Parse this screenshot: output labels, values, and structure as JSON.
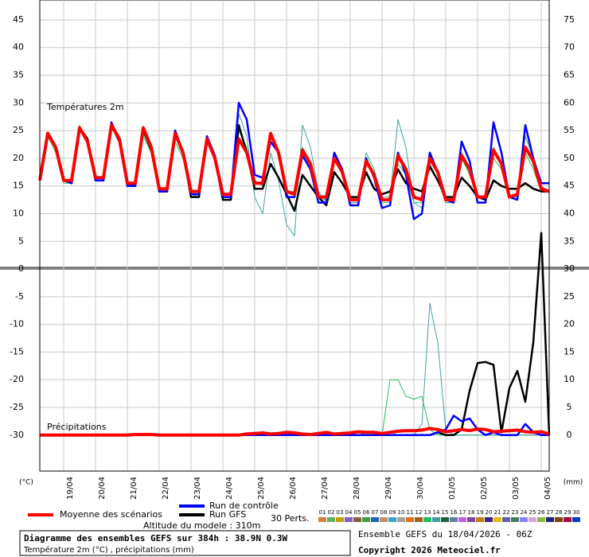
{
  "chart_data": {
    "type": "line",
    "title": "Diagramme des ensembles GEFS sur 384h : 38.9N 0.3W",
    "subtitle": "Température 2m (°C) , précipitations (mm)",
    "run_info": "Ensemble GEFS du 18/04/2026 - 06Z",
    "copyright": "Copyright 2026 Meteociel.fr",
    "altitude": "Altitude du modele : 310m",
    "temperature_label": "Températures 2m",
    "precipitation_label": "Précipitations",
    "y_unit": "(°C)",
    "y2_unit": "(mm)",
    "grid": true,
    "x": [
      0,
      6,
      12,
      18,
      24,
      30,
      36,
      42,
      48,
      54,
      60,
      66,
      72,
      78,
      84,
      90,
      96,
      102,
      108,
      114,
      120,
      126,
      132,
      138,
      144,
      150,
      156,
      162,
      168,
      174,
      180,
      186,
      192,
      198,
      204,
      210,
      216,
      222,
      228,
      234,
      240,
      246,
      252,
      258,
      264,
      270,
      276,
      282,
      288,
      294,
      300,
      306,
      312,
      318,
      324,
      330,
      336,
      342,
      348,
      354,
      360,
      366,
      372,
      378,
      384
    ],
    "xlim": [
      0,
      384
    ],
    "xticks": [
      {
        "value": 18,
        "label": "19/04"
      },
      {
        "value": 42,
        "label": "20/04"
      },
      {
        "value": 66,
        "label": "21/04"
      },
      {
        "value": 90,
        "label": "22/04"
      },
      {
        "value": 114,
        "label": "23/04"
      },
      {
        "value": 138,
        "label": "24/04"
      },
      {
        "value": 162,
        "label": "25/04"
      },
      {
        "value": 186,
        "label": "26/04"
      },
      {
        "value": 210,
        "label": "27/04"
      },
      {
        "value": 234,
        "label": "28/04"
      },
      {
        "value": 258,
        "label": "29/04"
      },
      {
        "value": 282,
        "label": "30/04"
      },
      {
        "value": 306,
        "label": "01/05"
      },
      {
        "value": 330,
        "label": "02/05"
      },
      {
        "value": 354,
        "label": "03/05"
      },
      {
        "value": 378,
        "label": "04/05"
      }
    ],
    "ylim": [
      -36.5,
      48.3
    ],
    "yticks": [
      45,
      40,
      35,
      30,
      25,
      20,
      15,
      10,
      5,
      0,
      -5,
      -10,
      -15,
      -20,
      -25,
      -30
    ],
    "y2lim": [
      -6.5,
      78.3
    ],
    "y2ticks": [
      75,
      70,
      65,
      60,
      55,
      50,
      45,
      40,
      35,
      30,
      25,
      20,
      15,
      10,
      5,
      0
    ],
    "series": [
      {
        "name": "Moyenne des scénarios",
        "color": "#ff0000",
        "width": 4,
        "values": [
          16,
          24.5,
          22,
          16,
          16,
          25.5,
          23,
          16.5,
          16.5,
          26,
          23.5,
          15.5,
          15.5,
          25.5,
          22,
          14.5,
          14.5,
          24.5,
          21,
          14,
          14,
          23.5,
          20,
          13.5,
          13.5,
          23.5,
          21,
          15.5,
          15.5,
          24.5,
          21,
          14,
          13.5,
          21.5,
          19,
          13,
          13,
          20,
          17.5,
          12.5,
          12.5,
          19.5,
          17,
          12.5,
          12.5,
          20.5,
          18,
          13,
          12.5,
          20,
          17.5,
          12.5,
          12.5,
          20.5,
          18,
          13,
          13,
          21.5,
          19,
          13,
          13.5,
          22,
          19.5,
          14.5,
          14
        ],
        "precip": [
          0,
          0,
          0,
          0,
          0,
          0,
          0,
          0,
          0,
          0,
          0,
          0,
          0.1,
          0.1,
          0.1,
          0,
          0,
          0,
          0,
          0,
          0,
          0,
          0,
          0,
          0,
          0,
          0.2,
          0.3,
          0.4,
          0.2,
          0.3,
          0.5,
          0.4,
          0.2,
          0.1,
          0.3,
          0.5,
          0.2,
          0.3,
          0.4,
          0.6,
          0.5,
          0.5,
          0.3,
          0.5,
          0.7,
          0.8,
          0.8,
          0.9,
          1.2,
          1,
          0.6,
          0.8,
          1,
          0.8,
          1.1,
          1,
          0.6,
          0.7,
          0.8,
          0.9,
          0.6,
          0.5,
          0.6,
          0.2
        ]
      },
      {
        "name": "Run de contrôle",
        "color": "#0000ff",
        "width": 2.5,
        "values": [
          16,
          24.5,
          22,
          16,
          15.5,
          25.5,
          23,
          16,
          16,
          26.5,
          23,
          15,
          15,
          25.5,
          22,
          14,
          14,
          25,
          21,
          13.5,
          13.5,
          24,
          20.5,
          13,
          13,
          30,
          27,
          17,
          16.5,
          23,
          21,
          13,
          13,
          20.5,
          18,
          12,
          12,
          21,
          18,
          11.5,
          11.5,
          20,
          16.5,
          11,
          11.5,
          21,
          17,
          9,
          10,
          21,
          17.5,
          12.5,
          12,
          23,
          19.5,
          12,
          12,
          26.5,
          21,
          13,
          12.5,
          26,
          20,
          15.5,
          15.5
        ],
        "precip": [
          0,
          0,
          0,
          0,
          0,
          0,
          0,
          0,
          0,
          0,
          0,
          0,
          0,
          0,
          0,
          0,
          0,
          0,
          0,
          0,
          0,
          0,
          0,
          0,
          0,
          0,
          0,
          0,
          0,
          0,
          0,
          0,
          0,
          0,
          0,
          0,
          0,
          0,
          0,
          0,
          0,
          0,
          0,
          0,
          0,
          0,
          0,
          0,
          0,
          0,
          0.5,
          1,
          3.5,
          2.5,
          3,
          1,
          0,
          0.5,
          0,
          0,
          0,
          2,
          0.5,
          0,
          0
        ]
      },
      {
        "name": "Run GFS",
        "color": "#000000",
        "width": 2.5,
        "values": [
          16,
          24.5,
          22,
          16,
          15.5,
          25.5,
          23.5,
          16,
          16,
          26,
          23,
          15.5,
          15,
          25,
          21.5,
          14,
          14,
          25,
          21,
          13,
          13,
          23.5,
          20,
          12.5,
          12.5,
          26,
          21,
          14.5,
          14.5,
          19,
          16.5,
          13.5,
          10.5,
          17,
          15,
          13,
          11.5,
          17.5,
          15.5,
          13,
          13,
          17.5,
          14.5,
          13.5,
          14,
          18,
          15.5,
          14.5,
          14,
          18.5,
          16,
          13,
          13,
          16.5,
          15,
          13,
          12.5,
          16,
          15,
          14.5,
          14.5,
          15.5,
          14.5,
          14,
          14
        ],
        "precip": [
          0,
          0,
          0,
          0,
          0,
          0,
          0,
          0,
          0,
          0,
          0,
          0,
          0,
          0,
          0,
          0,
          0,
          0,
          0,
          0,
          0,
          0,
          0,
          0,
          0,
          0,
          0,
          0,
          0,
          0,
          0,
          0,
          0,
          0,
          0,
          0,
          0,
          0,
          0,
          0,
          0,
          0,
          0,
          0,
          0,
          0,
          0,
          0,
          0,
          0,
          0.5,
          0,
          0,
          1,
          8,
          13,
          13.2,
          12.7,
          0.5,
          8.5,
          11.6,
          6,
          16.7,
          36.5,
          0
        ]
      }
    ],
    "perturbations": {
      "label": "30 Perts.",
      "members": [
        {
          "name": "01",
          "color": "#d08040"
        },
        {
          "name": "02",
          "color": "#60b060"
        },
        {
          "name": "03",
          "color": "#c0a000"
        },
        {
          "name": "04",
          "color": "#8060c0"
        },
        {
          "name": "05",
          "color": "#806040"
        },
        {
          "name": "06",
          "color": "#40a040"
        },
        {
          "name": "07",
          "color": "#2060c0"
        },
        {
          "name": "08",
          "color": "#c09060"
        },
        {
          "name": "09",
          "color": "#40a0c0"
        },
        {
          "name": "10",
          "color": "#a0a0a0"
        },
        {
          "name": "11",
          "color": "#e07020"
        },
        {
          "name": "12",
          "color": "#a06020"
        },
        {
          "name": "13",
          "color": "#20c060",
          "values": [
            16,
            24,
            21,
            15.5,
            15.5,
            26,
            23,
            16,
            16,
            25.5,
            23,
            15,
            15.5,
            24,
            21,
            14,
            14,
            23,
            20,
            13.5,
            13,
            23,
            20,
            13,
            13,
            25,
            22,
            16,
            15,
            24,
            21,
            14,
            14,
            22,
            19,
            13,
            12.5,
            20,
            17,
            12,
            12,
            21,
            18,
            12,
            12,
            19,
            17,
            12,
            12,
            19,
            16,
            12,
            12,
            20,
            17,
            13,
            13,
            20,
            18,
            13,
            13,
            21,
            18,
            14,
            14
          ],
          "precip": [
            0,
            0,
            0,
            0,
            0,
            0,
            0,
            0,
            0,
            0,
            0,
            0,
            0,
            0,
            0,
            0,
            0,
            0,
            0,
            0,
            0,
            0,
            0,
            0,
            0,
            0,
            0,
            0,
            0,
            0,
            0,
            0,
            0,
            0,
            0,
            0,
            0,
            0,
            0,
            0,
            0,
            0,
            0,
            0,
            10,
            10,
            7,
            6.5,
            7,
            1,
            0,
            0,
            0,
            0,
            0,
            0,
            0,
            0,
            0,
            0,
            0,
            0,
            0,
            0,
            0
          ]
        },
        {
          "name": "14",
          "color": "#40a0a0",
          "values": [
            16,
            24,
            22,
            16,
            16,
            25,
            23,
            16,
            16,
            26,
            23,
            15,
            15,
            25,
            22,
            14,
            14,
            24,
            21,
            13,
            13,
            23,
            20,
            13,
            13,
            28,
            24,
            13,
            10,
            21,
            16,
            8,
            6,
            26,
            22,
            14,
            12,
            20,
            17,
            12,
            12,
            19,
            17,
            13,
            13,
            27,
            22,
            12,
            11,
            20,
            17,
            12,
            12,
            21,
            18,
            13,
            13,
            22,
            19,
            13,
            13,
            24,
            20,
            15,
            14
          ],
          "precip": [
            0,
            0,
            0,
            0,
            0,
            0,
            0,
            0,
            0,
            0,
            0,
            0,
            0,
            0,
            0,
            0,
            0,
            0,
            0,
            0,
            0,
            0,
            0,
            0,
            0,
            0,
            0,
            0,
            0,
            0,
            0,
            0,
            0,
            0,
            0,
            0,
            0,
            0,
            0,
            0,
            0.5,
            0,
            0,
            0,
            0.5,
            0,
            0,
            0,
            2,
            23.8,
            16.7,
            1,
            0,
            0,
            0,
            0,
            0,
            0,
            0,
            0,
            0,
            0,
            0,
            0,
            0
          ]
        },
        {
          "name": "15",
          "color": "#206040"
        },
        {
          "name": "16",
          "color": "#6080a0"
        },
        {
          "name": "17",
          "color": "#c060e0"
        },
        {
          "name": "18",
          "color": "#8040a0"
        },
        {
          "name": "19",
          "color": "#c08000"
        },
        {
          "name": "20",
          "color": "#402080"
        },
        {
          "name": "21",
          "color": "#e0c000"
        },
        {
          "name": "22",
          "color": "#6060a0"
        },
        {
          "name": "23",
          "color": "#408060"
        },
        {
          "name": "24",
          "color": "#8080ff"
        },
        {
          "name": "25",
          "color": "#e0a0e0"
        },
        {
          "name": "26",
          "color": "#80c040"
        },
        {
          "name": "27",
          "color": "#202080"
        },
        {
          "name": "28",
          "color": "#804000"
        },
        {
          "name": "29",
          "color": "#a00040"
        },
        {
          "name": "30",
          "color": "#0040c0"
        }
      ]
    }
  }
}
